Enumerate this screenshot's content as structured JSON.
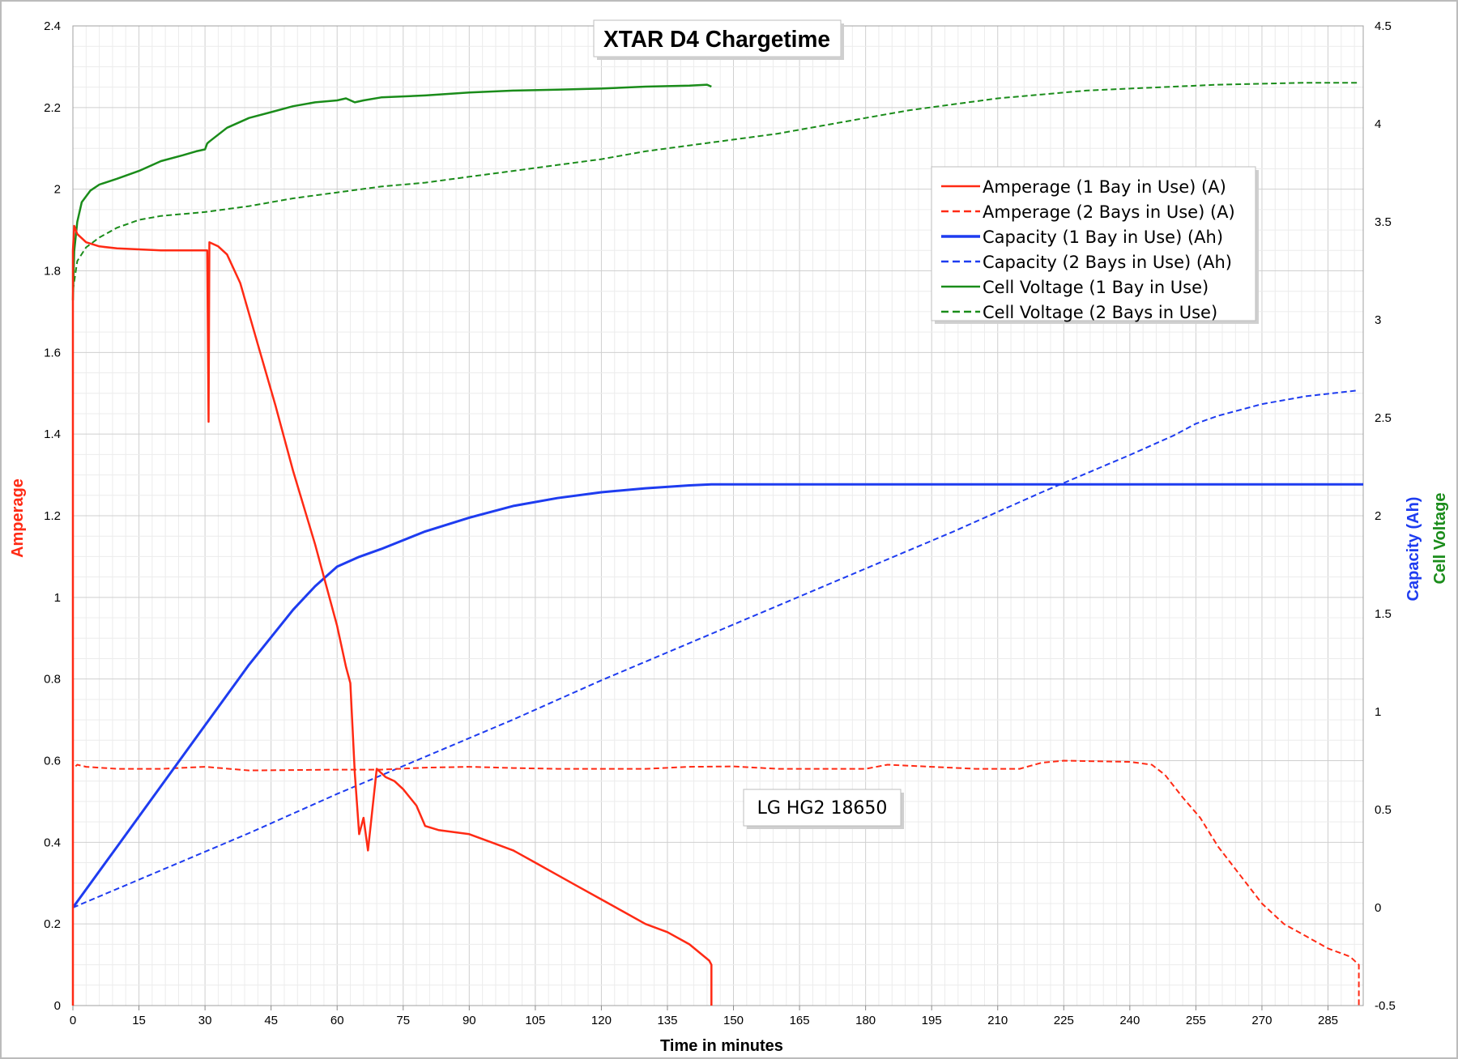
{
  "chart_data": {
    "type": "line",
    "title": "XTAR D4 Chargetime",
    "xlabel": "Time in minutes",
    "ylabel_left": "Amperage",
    "ylabel_right": [
      "Capacity (Ah)",
      "Cell Voltage"
    ],
    "xlim": [
      0,
      293
    ],
    "x_ticks": [
      0,
      15,
      30,
      45,
      60,
      75,
      90,
      105,
      120,
      135,
      150,
      165,
      180,
      195,
      210,
      225,
      240,
      255,
      270,
      285
    ],
    "ylim_left": [
      0,
      2.4
    ],
    "y_ticks_left": [
      "0",
      "0.2",
      "0.4",
      "0.6",
      "0.8",
      "1",
      "1.2",
      "1.4",
      "1.6",
      "1.8",
      "2",
      "2.2",
      "2.4"
    ],
    "ylim_right": [
      -0.5,
      4.5
    ],
    "y_ticks_right": [
      "-0.5",
      "0",
      "0.5",
      "1",
      "1.5",
      "2",
      "2.5",
      "3",
      "3.5",
      "4",
      "4.5"
    ],
    "grid": true,
    "legend_position": "upper-right",
    "annotation": "LG HG2 18650",
    "colors": {
      "amperage": "#ff2a14",
      "capacity": "#1e3cf0",
      "voltage": "#1a8c1a"
    },
    "series": [
      {
        "name": "Amperage (1 Bay in Use) (A)",
        "axis": "left",
        "color": "#ff2a14",
        "dash": "solid",
        "x": [
          0,
          0,
          0.3,
          1,
          3,
          6,
          10,
          20,
          28,
          30.5,
          30.8,
          31,
          33,
          35,
          38,
          42,
          46,
          50,
          55,
          60,
          62,
          63,
          64,
          65,
          66,
          67,
          68,
          69,
          71,
          73,
          75,
          78,
          80,
          83,
          90,
          95,
          100,
          105,
          110,
          115,
          120,
          125,
          130,
          135,
          140,
          144.5,
          145,
          145
        ],
        "y": [
          0,
          1.85,
          1.91,
          1.89,
          1.87,
          1.86,
          1.855,
          1.85,
          1.85,
          1.85,
          1.43,
          1.87,
          1.86,
          1.84,
          1.77,
          1.62,
          1.47,
          1.31,
          1.13,
          0.93,
          0.83,
          0.79,
          0.57,
          0.42,
          0.46,
          0.38,
          0.48,
          0.58,
          0.56,
          0.55,
          0.53,
          0.49,
          0.44,
          0.43,
          0.42,
          0.4,
          0.38,
          0.35,
          0.32,
          0.29,
          0.26,
          0.23,
          0.2,
          0.18,
          0.15,
          0.11,
          0.1,
          0
        ]
      },
      {
        "name": "Amperage (2 Bays in Use) (A)",
        "axis": "left",
        "color": "#ff2a14",
        "dash": "dashed",
        "x": [
          0,
          0,
          1,
          3,
          10,
          20,
          30,
          40,
          50,
          60,
          70,
          80,
          90,
          100,
          110,
          120,
          130,
          140,
          150,
          160,
          170,
          180,
          185,
          195,
          205,
          215,
          220,
          225,
          235,
          240,
          245,
          248,
          252,
          256,
          260,
          265,
          270,
          275,
          280,
          285,
          290,
          292,
          292
        ],
        "y": [
          0,
          0.58,
          0.59,
          0.585,
          0.58,
          0.58,
          0.585,
          0.576,
          0.577,
          0.578,
          0.578,
          0.583,
          0.585,
          0.582,
          0.58,
          0.58,
          0.58,
          0.585,
          0.586,
          0.58,
          0.58,
          0.58,
          0.59,
          0.585,
          0.58,
          0.58,
          0.595,
          0.6,
          0.598,
          0.597,
          0.59,
          0.565,
          0.51,
          0.46,
          0.39,
          0.32,
          0.25,
          0.2,
          0.17,
          0.14,
          0.12,
          0.1,
          0
        ]
      },
      {
        "name": "Capacity (1 Bay in Use) (Ah)",
        "axis": "right",
        "color": "#1e3cf0",
        "dash": "solid",
        "x": [
          0,
          10,
          20,
          30,
          40,
          50,
          55,
          60,
          65,
          70,
          80,
          90,
          100,
          110,
          120,
          130,
          140,
          145,
          160,
          200,
          250,
          293
        ],
        "y": [
          0,
          0.31,
          0.62,
          0.93,
          1.24,
          1.52,
          1.64,
          1.74,
          1.79,
          1.83,
          1.92,
          1.99,
          2.05,
          2.09,
          2.12,
          2.14,
          2.155,
          2.16,
          2.16,
          2.16,
          2.16,
          2.16
        ]
      },
      {
        "name": "Capacity (2 Bays in Use) (Ah)",
        "axis": "right",
        "color": "#1e3cf0",
        "dash": "dashed",
        "x": [
          0,
          20,
          40,
          60,
          80,
          100,
          120,
          140,
          160,
          180,
          200,
          220,
          240,
          250,
          255,
          260,
          270,
          280,
          292
        ],
        "y": [
          0,
          0.19,
          0.38,
          0.58,
          0.77,
          0.96,
          1.16,
          1.35,
          1.54,
          1.73,
          1.92,
          2.12,
          2.31,
          2.41,
          2.47,
          2.51,
          2.57,
          2.61,
          2.64
        ]
      },
      {
        "name": "Cell Voltage (1 Bay in Use)",
        "axis": "right",
        "color": "#1a8c1a",
        "dash": "solid",
        "x": [
          0,
          0.3,
          1,
          2,
          4,
          6,
          10,
          15,
          20,
          25,
          28,
          30,
          30.5,
          31,
          35,
          40,
          45,
          50,
          55,
          60,
          62,
          64,
          66,
          70,
          80,
          90,
          100,
          110,
          120,
          130,
          140,
          144,
          145
        ],
        "y": [
          3.1,
          3.35,
          3.5,
          3.6,
          3.66,
          3.69,
          3.72,
          3.76,
          3.81,
          3.84,
          3.86,
          3.87,
          3.9,
          3.91,
          3.98,
          4.03,
          4.06,
          4.09,
          4.11,
          4.12,
          4.13,
          4.11,
          4.12,
          4.135,
          4.145,
          4.16,
          4.17,
          4.175,
          4.18,
          4.19,
          4.195,
          4.2,
          4.19
        ]
      },
      {
        "name": "Cell Voltage (2 Bays in Use)",
        "axis": "right",
        "color": "#1a8c1a",
        "dash": "dashed",
        "x": [
          0,
          1,
          3,
          6,
          10,
          15,
          20,
          30,
          40,
          50,
          60,
          70,
          80,
          90,
          100,
          110,
          120,
          130,
          140,
          150,
          160,
          170,
          180,
          190,
          200,
          210,
          220,
          230,
          240,
          250,
          260,
          270,
          280,
          292
        ],
        "y": [
          3.15,
          3.3,
          3.37,
          3.42,
          3.47,
          3.51,
          3.53,
          3.55,
          3.58,
          3.62,
          3.65,
          3.68,
          3.7,
          3.73,
          3.76,
          3.79,
          3.82,
          3.86,
          3.89,
          3.92,
          3.95,
          3.99,
          4.03,
          4.07,
          4.1,
          4.13,
          4.15,
          4.17,
          4.18,
          4.19,
          4.2,
          4.205,
          4.21,
          4.21
        ]
      }
    ]
  }
}
